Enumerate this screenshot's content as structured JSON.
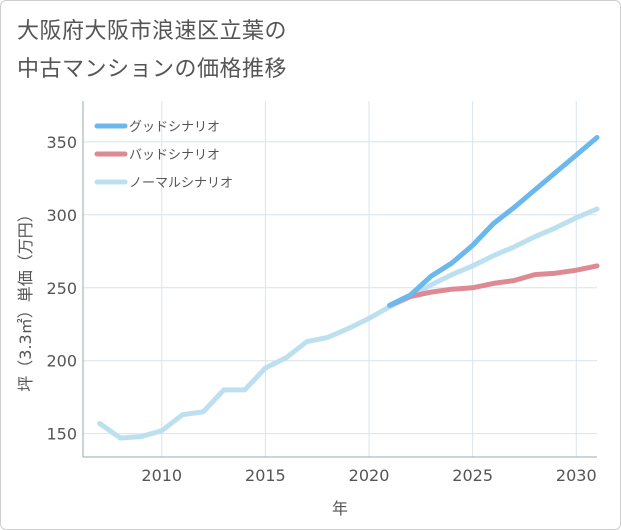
{
  "title": {
    "line1": "大阪府大阪市浪速区立葉の",
    "line2": "中古マンションの価格推移"
  },
  "colors": {
    "good": "#6ab8ec",
    "bad": "#de8a93",
    "normal": "#bde0f0",
    "grid": "#d8e4ec",
    "text": "#555555"
  },
  "chart_data": {
    "type": "line",
    "title": "大阪府大阪市浪速区立葉の中古マンションの価格推移",
    "xlabel": "年",
    "ylabel": "坪（3.3㎡）単価（万円）",
    "xlim": [
      2006.2,
      2031
    ],
    "ylim": [
      134,
      378
    ],
    "xticks": [
      2010,
      2015,
      2020,
      2025,
      2030
    ],
    "yticks": [
      150,
      200,
      250,
      300,
      350
    ],
    "legend_position": "top-left",
    "series": [
      {
        "name": "グッドシナリオ",
        "color": "#6ab8ec",
        "x": [
          2021,
          2022,
          2023,
          2024,
          2025,
          2026,
          2027,
          2028,
          2029,
          2030,
          2031
        ],
        "y": [
          238,
          245,
          258,
          267,
          279,
          294,
          305,
          317,
          329,
          341,
          353
        ]
      },
      {
        "name": "バッドシナリオ",
        "color": "#de8a93",
        "x": [
          2021,
          2022,
          2023,
          2024,
          2025,
          2026,
          2027,
          2028,
          2029,
          2030,
          2031
        ],
        "y": [
          238,
          244,
          247,
          249,
          250,
          253,
          255,
          259,
          260,
          262,
          265
        ]
      },
      {
        "name": "ノーマルシナリオ",
        "color": "#bde0f0",
        "x": [
          2007,
          2008,
          2009,
          2010,
          2011,
          2012,
          2013,
          2014,
          2015,
          2016,
          2017,
          2018,
          2019,
          2020,
          2021,
          2022,
          2023,
          2024,
          2025,
          2026,
          2027,
          2028,
          2029,
          2030,
          2031
        ],
        "y": [
          157,
          147,
          148,
          152,
          163,
          165,
          180,
          180,
          195,
          202,
          213,
          216,
          222,
          229,
          237,
          244,
          252,
          259,
          265,
          272,
          278,
          285,
          291,
          298,
          304
        ]
      }
    ]
  }
}
